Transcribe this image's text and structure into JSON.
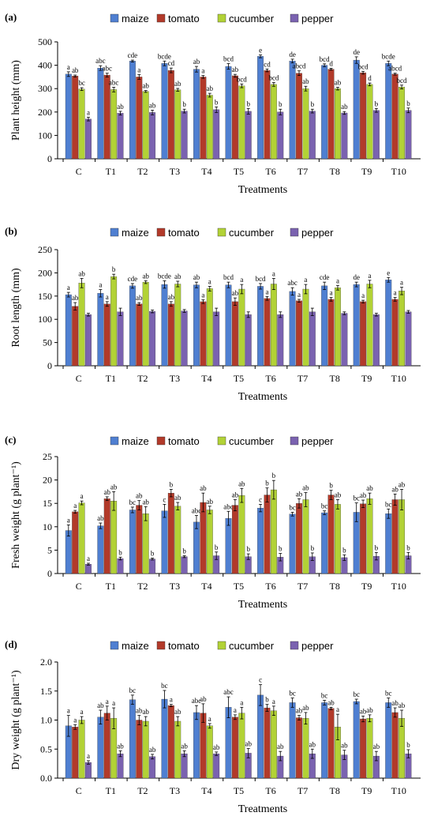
{
  "colors": {
    "maize": "#4f7fd1",
    "tomato": "#b23a2a",
    "cucumber": "#b2d236",
    "pepper": "#7a62b0",
    "axis": "#000000",
    "error_bar": "#000000"
  },
  "legend_placement": "top-center",
  "chart_data": [
    {
      "panel": "(a)",
      "type": "bar",
      "title": "",
      "xlabel": "Treatments",
      "ylabel": "Plant height (mm)",
      "ylim": [
        0,
        500
      ],
      "yticks": [
        0,
        100,
        200,
        300,
        400,
        500
      ],
      "grid": false,
      "categories": [
        "C",
        "T1",
        "T2",
        "T3",
        "T4",
        "T5",
        "T6",
        "T7",
        "T8",
        "T9",
        "T10"
      ],
      "series": [
        {
          "name": "maize",
          "values": [
            362,
            388,
            418,
            408,
            383,
            395,
            438,
            418,
            400,
            422,
            408
          ],
          "errors": [
            10,
            10,
            4,
            10,
            12,
            12,
            6,
            8,
            6,
            14,
            10
          ],
          "labels": [
            "a",
            "abc",
            "cde",
            "bcde",
            "ab",
            "bcd",
            "e",
            "de",
            "bcd",
            "de",
            "bcde"
          ]
        },
        {
          "name": "tomato",
          "values": [
            354,
            358,
            350,
            378,
            350,
            355,
            378,
            366,
            383,
            368,
            362
          ],
          "errors": [
            4,
            8,
            10,
            10,
            6,
            6,
            6,
            10,
            4,
            6,
            4
          ],
          "labels": [
            "ab",
            "abc",
            "a",
            "cd",
            "a",
            "ab",
            "cd",
            "abcd",
            "d",
            "bcd",
            "abcd"
          ]
        },
        {
          "name": "cucumber",
          "values": [
            298,
            296,
            288,
            295,
            272,
            312,
            318,
            300,
            300,
            318,
            307
          ],
          "errors": [
            6,
            10,
            4,
            6,
            8,
            8,
            8,
            10,
            6,
            6,
            8
          ],
          "labels": [
            "bc",
            "abc",
            "ab",
            "ab",
            "ab",
            "bcd",
            "bcd",
            "ab",
            "ab",
            "d",
            "bcd"
          ]
        },
        {
          "name": "pepper",
          "values": [
            170,
            195,
            198,
            204,
            210,
            203,
            200,
            204,
            196,
            207,
            207
          ],
          "errors": [
            8,
            8,
            10,
            8,
            12,
            12,
            12,
            8,
            6,
            8,
            10
          ],
          "labels": [
            "a",
            "ab",
            "ab",
            "b",
            "b",
            "b",
            "b",
            "b",
            "ab",
            "b",
            "b"
          ]
        }
      ]
    },
    {
      "panel": "(b)",
      "type": "bar",
      "title": "",
      "xlabel": "Treatments",
      "ylabel": "Root length (mm)",
      "ylim": [
        0,
        250
      ],
      "yticks": [
        0,
        50,
        100,
        150,
        200,
        250
      ],
      "grid": false,
      "categories": [
        "C",
        "T1",
        "T2",
        "T3",
        "T4",
        "T5",
        "T6",
        "T7",
        "T8",
        "T9",
        "T10"
      ],
      "series": [
        {
          "name": "maize",
          "values": [
            153,
            156,
            172,
            175,
            174,
            174,
            171,
            160,
            172,
            175,
            185
          ],
          "errors": [
            5,
            8,
            5,
            8,
            6,
            6,
            6,
            8,
            8,
            5,
            5
          ],
          "labels": [
            "a",
            "a",
            "cde",
            "bcde",
            "ab",
            "bcd",
            "bcd",
            "abc",
            "cde",
            "de",
            "e"
          ]
        },
        {
          "name": "tomato",
          "values": [
            128,
            133,
            133,
            133,
            138,
            138,
            145,
            140,
            143,
            138,
            143
          ],
          "errors": [
            8,
            5,
            3,
            5,
            4,
            8,
            4,
            3,
            4,
            3,
            4
          ],
          "labels": [
            "ab",
            "a",
            "ab",
            "ab",
            "a",
            "ab",
            "a",
            "a",
            "a",
            "a",
            "a"
          ]
        },
        {
          "name": "cucumber",
          "values": [
            178,
            192,
            180,
            176,
            166,
            165,
            176,
            165,
            168,
            176,
            161
          ],
          "errors": [
            10,
            5,
            3,
            6,
            5,
            10,
            12,
            10,
            5,
            8,
            8
          ],
          "labels": [
            "ab",
            "b",
            "ab",
            "ab",
            "a",
            "a",
            "a",
            "a",
            "a",
            "a",
            "a"
          ]
        },
        {
          "name": "pepper",
          "values": [
            110,
            116,
            117,
            118,
            116,
            110,
            110,
            116,
            113,
            110,
            116
          ],
          "errors": [
            3,
            8,
            3,
            3,
            8,
            6,
            6,
            8,
            3,
            3,
            3
          ],
          "labels": [
            "",
            "",
            "",
            "",
            "",
            "",
            "",
            "",
            "",
            "",
            ""
          ]
        }
      ]
    },
    {
      "panel": "(c)",
      "type": "bar",
      "title": "",
      "xlabel": "Treatments",
      "ylabel": "Fresh weight (g plant⁻¹)",
      "ylim": [
        0,
        25
      ],
      "yticks": [
        0,
        5,
        10,
        15,
        20,
        25
      ],
      "grid": false,
      "categories": [
        "C",
        "T1",
        "T2",
        "T3",
        "T4",
        "T5",
        "T6",
        "T7",
        "T8",
        "T9",
        "T10"
      ],
      "series": [
        {
          "name": "maize",
          "values": [
            9.2,
            10.2,
            13.6,
            13.4,
            11,
            11.8,
            14,
            12.7,
            13,
            13.1,
            12.8
          ],
          "errors": [
            1.2,
            0.6,
            0.6,
            1.4,
            1.4,
            1.5,
            0.8,
            0.4,
            0.4,
            2.0,
            1.0
          ],
          "labels": [
            "a",
            "ab",
            "bc",
            "c",
            "abc",
            "abc",
            "c",
            "bc",
            "bc",
            "bc",
            "bc"
          ]
        },
        {
          "name": "tomato",
          "values": [
            13.2,
            16,
            14.6,
            17.2,
            15.2,
            14.6,
            16.8,
            15,
            16.8,
            14.9,
            15.8
          ],
          "errors": [
            0.3,
            0.4,
            1.0,
            0.8,
            2.0,
            1.2,
            1.5,
            1.0,
            1.0,
            0.8,
            1.2
          ],
          "labels": [
            "a",
            "ab",
            "ab",
            "b",
            "ab",
            "ab",
            "b",
            "ab",
            "b",
            "ab",
            "ab"
          ]
        },
        {
          "name": "cucumber",
          "values": [
            15.1,
            15.5,
            12.8,
            14.4,
            13.6,
            16.7,
            17.9,
            15.8,
            14.8,
            16,
            15.8
          ],
          "errors": [
            0.4,
            2.0,
            1.5,
            0.8,
            0.8,
            1.5,
            2.0,
            1.5,
            1.0,
            1.2,
            2.2
          ],
          "labels": [
            "a",
            "ab",
            "ab",
            "ab",
            "ab",
            "ab",
            "b",
            "ab",
            "ab",
            "ab",
            "ab"
          ]
        },
        {
          "name": "pepper",
          "values": [
            2,
            3.2,
            3.1,
            3.6,
            3.8,
            3.6,
            3.5,
            3.6,
            3.4,
            3.7,
            3.8
          ],
          "errors": [
            0.2,
            0.3,
            0.2,
            0.2,
            0.8,
            0.6,
            0.8,
            0.8,
            0.6,
            0.8,
            0.7
          ],
          "labels": [
            "a",
            "b",
            "b",
            "b",
            "b",
            "b",
            "b",
            "b",
            "b",
            "b",
            "b"
          ]
        }
      ]
    },
    {
      "panel": "(d)",
      "type": "bar",
      "title": "",
      "xlabel": "Treatments",
      "ylabel": "Dry weight (g plant⁻¹)",
      "ylim": [
        0,
        2.0
      ],
      "yticks": [
        0.0,
        0.5,
        1.0,
        1.5,
        2.0
      ],
      "tick_labels": [
        "0.0",
        "0.5",
        "1.0",
        "1.5",
        "2.0"
      ],
      "grid": false,
      "categories": [
        "C",
        "T1",
        "T2",
        "T3",
        "T4",
        "T5",
        "T6",
        "T7",
        "T8",
        "T9",
        "T10"
      ],
      "series": [
        {
          "name": "maize",
          "values": [
            0.9,
            1.05,
            1.35,
            1.36,
            1.13,
            1.22,
            1.43,
            1.3,
            1.3,
            1.32,
            1.3
          ],
          "errors": [
            0.18,
            0.12,
            0.08,
            0.15,
            0.12,
            0.18,
            0.18,
            0.08,
            0.04,
            0.04,
            0.08
          ],
          "labels": [
            "a",
            "ab",
            "bc",
            "bc",
            "abc",
            "abc",
            "c",
            "bc",
            "bc",
            "bc",
            "bc"
          ]
        },
        {
          "name": "tomato",
          "values": [
            0.88,
            1.12,
            1.0,
            1.25,
            1.12,
            1.05,
            1.21,
            1.04,
            1.2,
            1.02,
            1.13
          ],
          "errors": [
            0.04,
            0.12,
            0.08,
            0.02,
            0.16,
            0.04,
            0.06,
            0.04,
            0.02,
            0.05,
            0.08
          ],
          "labels": [
            "a",
            "a",
            "ab",
            "a",
            "ab",
            "a",
            "b",
            "ab",
            "ab",
            "ab",
            "ab"
          ]
        },
        {
          "name": "cucumber",
          "values": [
            1.0,
            1.03,
            0.98,
            0.98,
            0.9,
            1.12,
            1.16,
            1.03,
            0.88,
            1.03,
            1.03
          ],
          "errors": [
            0.06,
            0.18,
            0.08,
            0.08,
            0.04,
            0.1,
            0.08,
            0.1,
            0.22,
            0.06,
            0.14
          ],
          "labels": [
            "a",
            "a",
            "ab",
            "ab",
            "a",
            "a",
            "a",
            "ab",
            "a",
            "ab",
            "ab"
          ]
        },
        {
          "name": "pepper",
          "values": [
            0.27,
            0.42,
            0.37,
            0.42,
            0.42,
            0.43,
            0.38,
            0.42,
            0.4,
            0.38,
            0.42
          ],
          "errors": [
            0.03,
            0.05,
            0.04,
            0.05,
            0.03,
            0.08,
            0.08,
            0.08,
            0.08,
            0.08,
            0.07
          ],
          "labels": [
            "a",
            "ab",
            "ab",
            "ab",
            "ab",
            "ab",
            "ab",
            "ab",
            "ab",
            "ab",
            "b"
          ]
        }
      ]
    }
  ]
}
